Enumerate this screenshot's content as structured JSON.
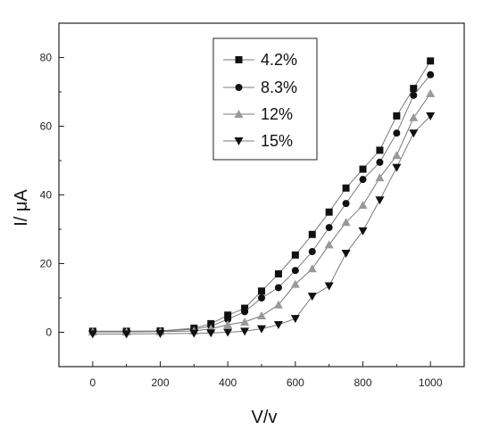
{
  "chart_data": {
    "type": "line",
    "xlabel": "V/v",
    "ylabel": "I/ μA",
    "xlim": [
      -100,
      1100
    ],
    "ylim": [
      -10,
      90
    ],
    "xticks": [
      0,
      200,
      400,
      600,
      800,
      1000
    ],
    "yticks": [
      0,
      20,
      40,
      60,
      80
    ],
    "grid": false,
    "legend_position": "top-center",
    "series": [
      {
        "name": "4.2%",
        "marker": "square",
        "color": "#111111",
        "x": [
          0,
          100,
          200,
          300,
          350,
          400,
          450,
          500,
          550,
          600,
          650,
          700,
          750,
          800,
          850,
          900,
          950,
          1000
        ],
        "y": [
          0.3,
          0.3,
          0.4,
          1.2,
          2.5,
          5,
          7,
          12,
          17,
          22.5,
          28.5,
          35,
          42,
          47.5,
          53,
          63,
          71,
          79
        ]
      },
      {
        "name": "8.3%",
        "marker": "circle",
        "color": "#111111",
        "x": [
          0,
          100,
          200,
          300,
          350,
          400,
          450,
          500,
          550,
          600,
          650,
          700,
          750,
          800,
          850,
          900,
          950,
          1000
        ],
        "y": [
          0.2,
          0.2,
          0.3,
          0.9,
          1.8,
          3.8,
          6,
          10,
          13,
          18,
          23.5,
          30.5,
          37.5,
          44.5,
          49.5,
          58,
          69,
          75
        ]
      },
      {
        "name": "12%",
        "marker": "triangle-up",
        "color": "#999999",
        "x": [
          0,
          100,
          200,
          300,
          350,
          400,
          450,
          500,
          550,
          600,
          650,
          700,
          750,
          800,
          850,
          900,
          950,
          1000
        ],
        "y": [
          0.1,
          0.1,
          0.2,
          0.4,
          1,
          2.2,
          3,
          4.8,
          8,
          14,
          18.5,
          25.5,
          32,
          37,
          45,
          51.5,
          62.5,
          69.5
        ]
      },
      {
        "name": "15%",
        "marker": "triangle-down",
        "color": "#111111",
        "x": [
          0,
          100,
          200,
          300,
          350,
          400,
          450,
          500,
          550,
          600,
          650,
          700,
          750,
          800,
          850,
          900,
          950,
          1000
        ],
        "y": [
          -0.5,
          -0.5,
          -0.4,
          -0.3,
          -0.2,
          0,
          0.3,
          1,
          2.2,
          4,
          10.5,
          13.5,
          23,
          29.5,
          38.5,
          48,
          58,
          63
        ]
      }
    ]
  }
}
